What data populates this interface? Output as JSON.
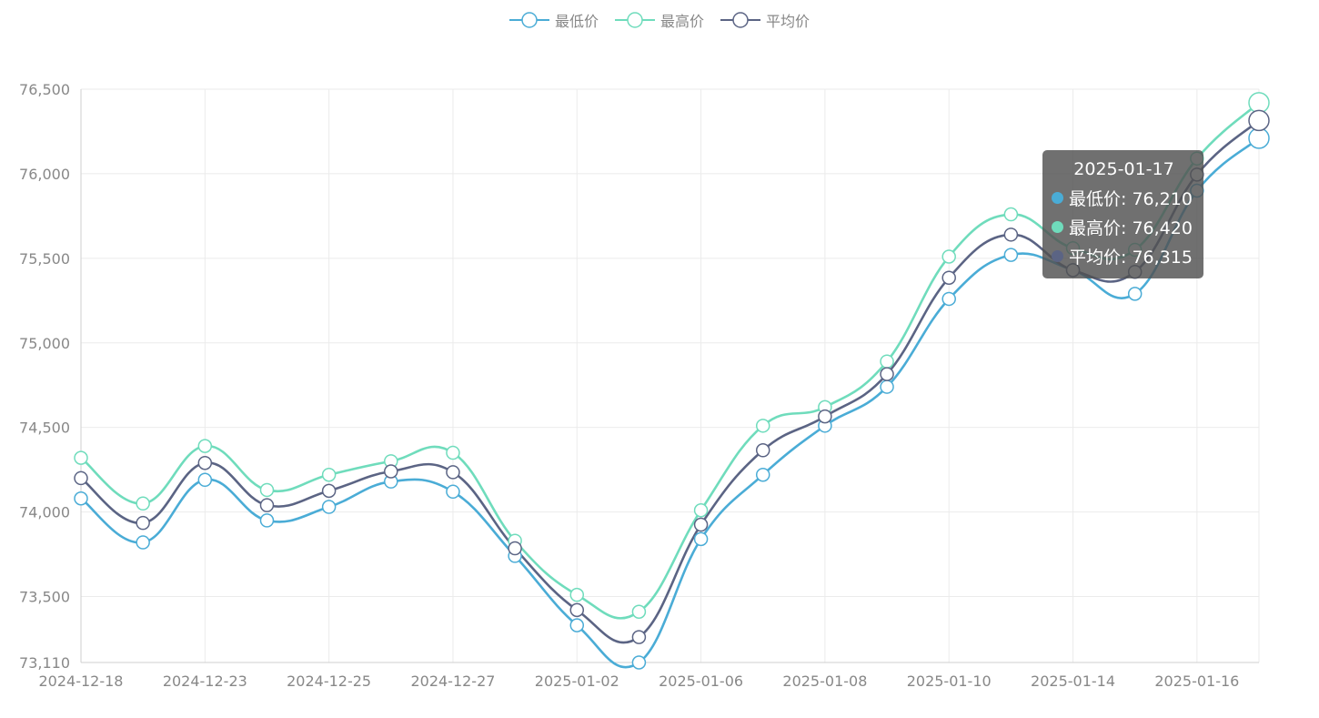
{
  "legend": {
    "items": [
      {
        "label": "最低价",
        "color": "#4aacd6"
      },
      {
        "label": "最高价",
        "color": "#6fdcbc"
      },
      {
        "label": "平均价",
        "color": "#5b6484"
      }
    ]
  },
  "tooltip": {
    "title": "2025-01-17",
    "rows": [
      {
        "label": "最低价: 76,210",
        "color": "#4aacd6"
      },
      {
        "label": "最高价: 76,420",
        "color": "#6fdcbc"
      },
      {
        "label": "平均价: 76,315",
        "color": "#5b6484"
      }
    ]
  },
  "chart_data": {
    "type": "line",
    "smooth": true,
    "x": [
      "2024-12-18",
      "2024-12-20",
      "2024-12-23",
      "2024-12-24",
      "2024-12-25",
      "2024-12-26",
      "2024-12-27",
      "2024-12-30",
      "2025-01-02",
      "2025-01-03",
      "2025-01-06",
      "2025-01-07",
      "2025-01-08",
      "2025-01-09",
      "2025-01-10",
      "2025-01-13",
      "2025-01-14",
      "2025-01-15",
      "2025-01-16",
      "2025-01-17"
    ],
    "x_tick_labels": [
      "2024-12-18",
      "2024-12-23",
      "2024-12-25",
      "2024-12-27",
      "2025-01-02",
      "2025-01-06",
      "2025-01-08",
      "2025-01-10",
      "2025-01-14",
      "2025-01-16"
    ],
    "y_ticks": [
      73110,
      73500,
      74000,
      74500,
      75000,
      75500,
      76000,
      76500
    ],
    "y_tick_labels": [
      "73,110",
      "73,500",
      "74,000",
      "74,500",
      "75,000",
      "75,500",
      "76,000",
      "76,500"
    ],
    "ylim": [
      73110,
      76500
    ],
    "grid": true,
    "legend_position": "top-center",
    "series": [
      {
        "name": "最低价",
        "color": "#4aacd6",
        "values": [
          74080,
          73820,
          74190,
          73950,
          74030,
          74180,
          74120,
          73740,
          73330,
          73110,
          73840,
          74220,
          74510,
          74740,
          75260,
          75520,
          75430,
          75290,
          75900,
          76210
        ]
      },
      {
        "name": "最高价",
        "color": "#6fdcbc",
        "values": [
          74320,
          74050,
          74390,
          74130,
          74220,
          74300,
          74350,
          73830,
          73510,
          73410,
          74010,
          74510,
          74620,
          74890,
          75510,
          75760,
          75560,
          75550,
          76090,
          76420
        ]
      },
      {
        "name": "平均价",
        "color": "#5b6484",
        "values": [
          74200,
          73935,
          74290,
          74040,
          74125,
          74240,
          74235,
          73785,
          73420,
          73260,
          73925,
          74365,
          74565,
          74815,
          75385,
          75640,
          75430,
          75420,
          75995,
          76315
        ]
      }
    ]
  }
}
